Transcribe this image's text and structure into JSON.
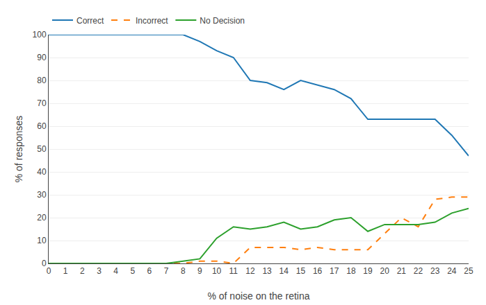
{
  "chart_data": {
    "type": "line",
    "xlabel": "% of noise on the retina",
    "ylabel": "% of responses",
    "x": [
      0,
      1,
      2,
      3,
      4,
      5,
      6,
      7,
      8,
      9,
      10,
      11,
      12,
      13,
      14,
      15,
      16,
      17,
      18,
      19,
      20,
      21,
      22,
      23,
      24,
      25
    ],
    "series": [
      {
        "name": "Correct",
        "line_style": "solid",
        "values": [
          100,
          100,
          100,
          100,
          100,
          100,
          100,
          100,
          100,
          97,
          93,
          90,
          80,
          79,
          76,
          80,
          78,
          76,
          72,
          63,
          63,
          63,
          63,
          63,
          56,
          47
        ]
      },
      {
        "name": "Incorrect",
        "line_style": "dashed",
        "values": [
          0,
          0,
          0,
          0,
          0,
          0,
          0,
          0,
          0,
          1,
          1,
          0,
          7,
          7,
          7,
          6,
          7,
          6,
          6,
          6,
          13,
          20,
          16,
          28,
          29,
          29
        ]
      },
      {
        "name": "No Decision",
        "line_style": "solid",
        "values": [
          0,
          0,
          0,
          0,
          0,
          0,
          0,
          0,
          1,
          2,
          11,
          16,
          15,
          16,
          18,
          15,
          16,
          19,
          20,
          14,
          17,
          17,
          17,
          18,
          22,
          24
        ]
      }
    ],
    "xlim": [
      0,
      25
    ],
    "xticks": [
      0,
      1,
      2,
      3,
      4,
      5,
      6,
      7,
      8,
      9,
      10,
      11,
      12,
      13,
      14,
      15,
      16,
      17,
      18,
      19,
      20,
      21,
      22,
      23,
      24,
      25
    ],
    "ylim": [
      0,
      100
    ],
    "yticks": [
      0,
      10,
      20,
      30,
      40,
      50,
      60,
      70,
      80,
      90,
      100
    ],
    "grid": "y",
    "legend": "upper left"
  }
}
